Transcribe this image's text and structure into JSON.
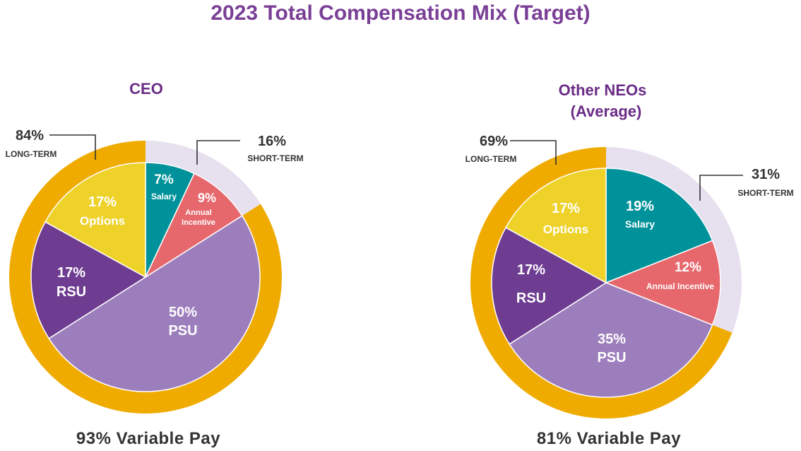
{
  "title": "2023 Total Compensation Mix (Target)",
  "colors": {
    "title": "#7a3f96",
    "salary": "#00929a",
    "annual_incentive": "#e6686c",
    "psu": "#9c7ebc",
    "rsu": "#6e3c91",
    "options": "#eed22a",
    "long_term_ring": "#f0ab00",
    "short_term_ring": "#e6e0ef"
  },
  "chart_data": [
    {
      "type": "pie",
      "title": "CEO",
      "slices": [
        {
          "key": "salary",
          "label": "Salary",
          "value": 7,
          "value_label": "7%"
        },
        {
          "key": "annual_incentive",
          "label": "Annual Incentive",
          "value": 9,
          "value_label": "9%"
        },
        {
          "key": "psu",
          "label": "PSU",
          "value": 50,
          "value_label": "50%"
        },
        {
          "key": "rsu",
          "label": "RSU",
          "value": 17,
          "value_label": "17%"
        },
        {
          "key": "options",
          "label": "Options",
          "value": 17,
          "value_label": "17%"
        }
      ],
      "outer_ring": [
        {
          "key": "short_term",
          "label": "SHORT-TERM",
          "value": 16,
          "value_label": "16%"
        },
        {
          "key": "long_term",
          "label": "LONG-TERM",
          "value": 84,
          "value_label": "84%"
        }
      ],
      "footer": "93% Variable Pay"
    },
    {
      "type": "pie",
      "title_lines": [
        "Other NEOs",
        "(Average)"
      ],
      "slices": [
        {
          "key": "salary",
          "label": "Salary",
          "value": 19,
          "value_label": "19%"
        },
        {
          "key": "annual_incentive",
          "label": "Annual Incentive",
          "value": 12,
          "value_label": "12%"
        },
        {
          "key": "psu",
          "label": "PSU",
          "value": 35,
          "value_label": "35%"
        },
        {
          "key": "rsu",
          "label": "RSU",
          "value": 17,
          "value_label": "17%"
        },
        {
          "key": "options",
          "label": "Options",
          "value": 17,
          "value_label": "17%"
        }
      ],
      "outer_ring": [
        {
          "key": "short_term",
          "label": "SHORT-TERM",
          "value": 31,
          "value_label": "31%"
        },
        {
          "key": "long_term",
          "label": "LONG-TERM",
          "value": 69,
          "value_label": "69%"
        }
      ],
      "footer": "81% Variable Pay"
    }
  ]
}
